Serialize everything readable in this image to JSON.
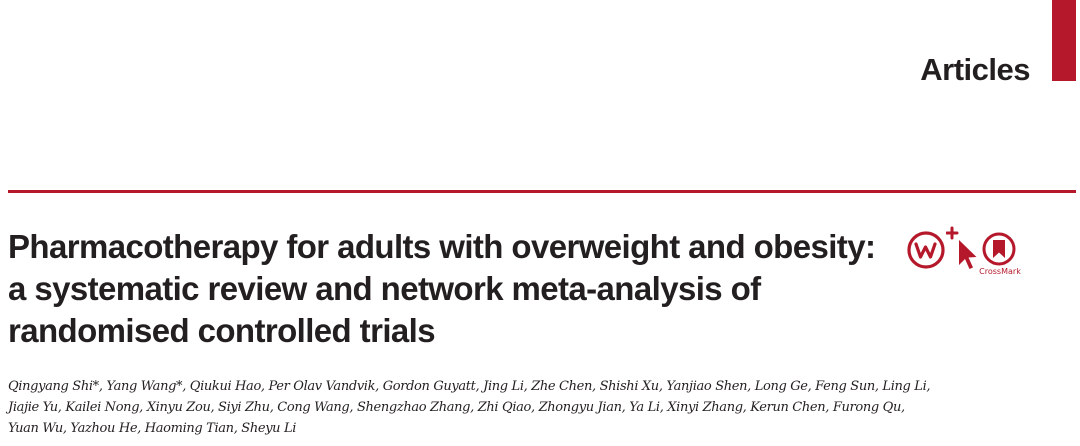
{
  "header": {
    "section_label": "Articles"
  },
  "article": {
    "title_lines": [
      "Pharmacotherapy for adults with overweight and obesity:",
      "a systematic review and network meta-analysis of",
      "randomised controlled trials"
    ],
    "author_lines": [
      "Qingyang Shi*, Yang Wang*, Qiukui Hao, Per Olav Vandvik, Gordon Guyatt, Jing Li, Zhe Chen, Shishi Xu, Yanjiao Shen, Long Ge, Feng Sun, Ling Li,",
      "Jiajie Yu, Kailei Nong, Xinyu Zou, Siyi Zhu, Cong Wang, Shengzhao Zhang, Zhi Qiao, Zhongyu Jian, Ya Li, Xinyi Zhang, Kerun Chen, Furong Qu,",
      "Yuan Wu, Yazhou He, Haoming Tian, Sheyu Li"
    ]
  },
  "badges": {
    "crossmark_label": "CrossMark",
    "icons": [
      "w-plus-icon",
      "cursor-icon",
      "crossmark-icon"
    ]
  },
  "colors": {
    "accent": "#b5182b",
    "text": "#231f20",
    "background": "#ffffff"
  }
}
